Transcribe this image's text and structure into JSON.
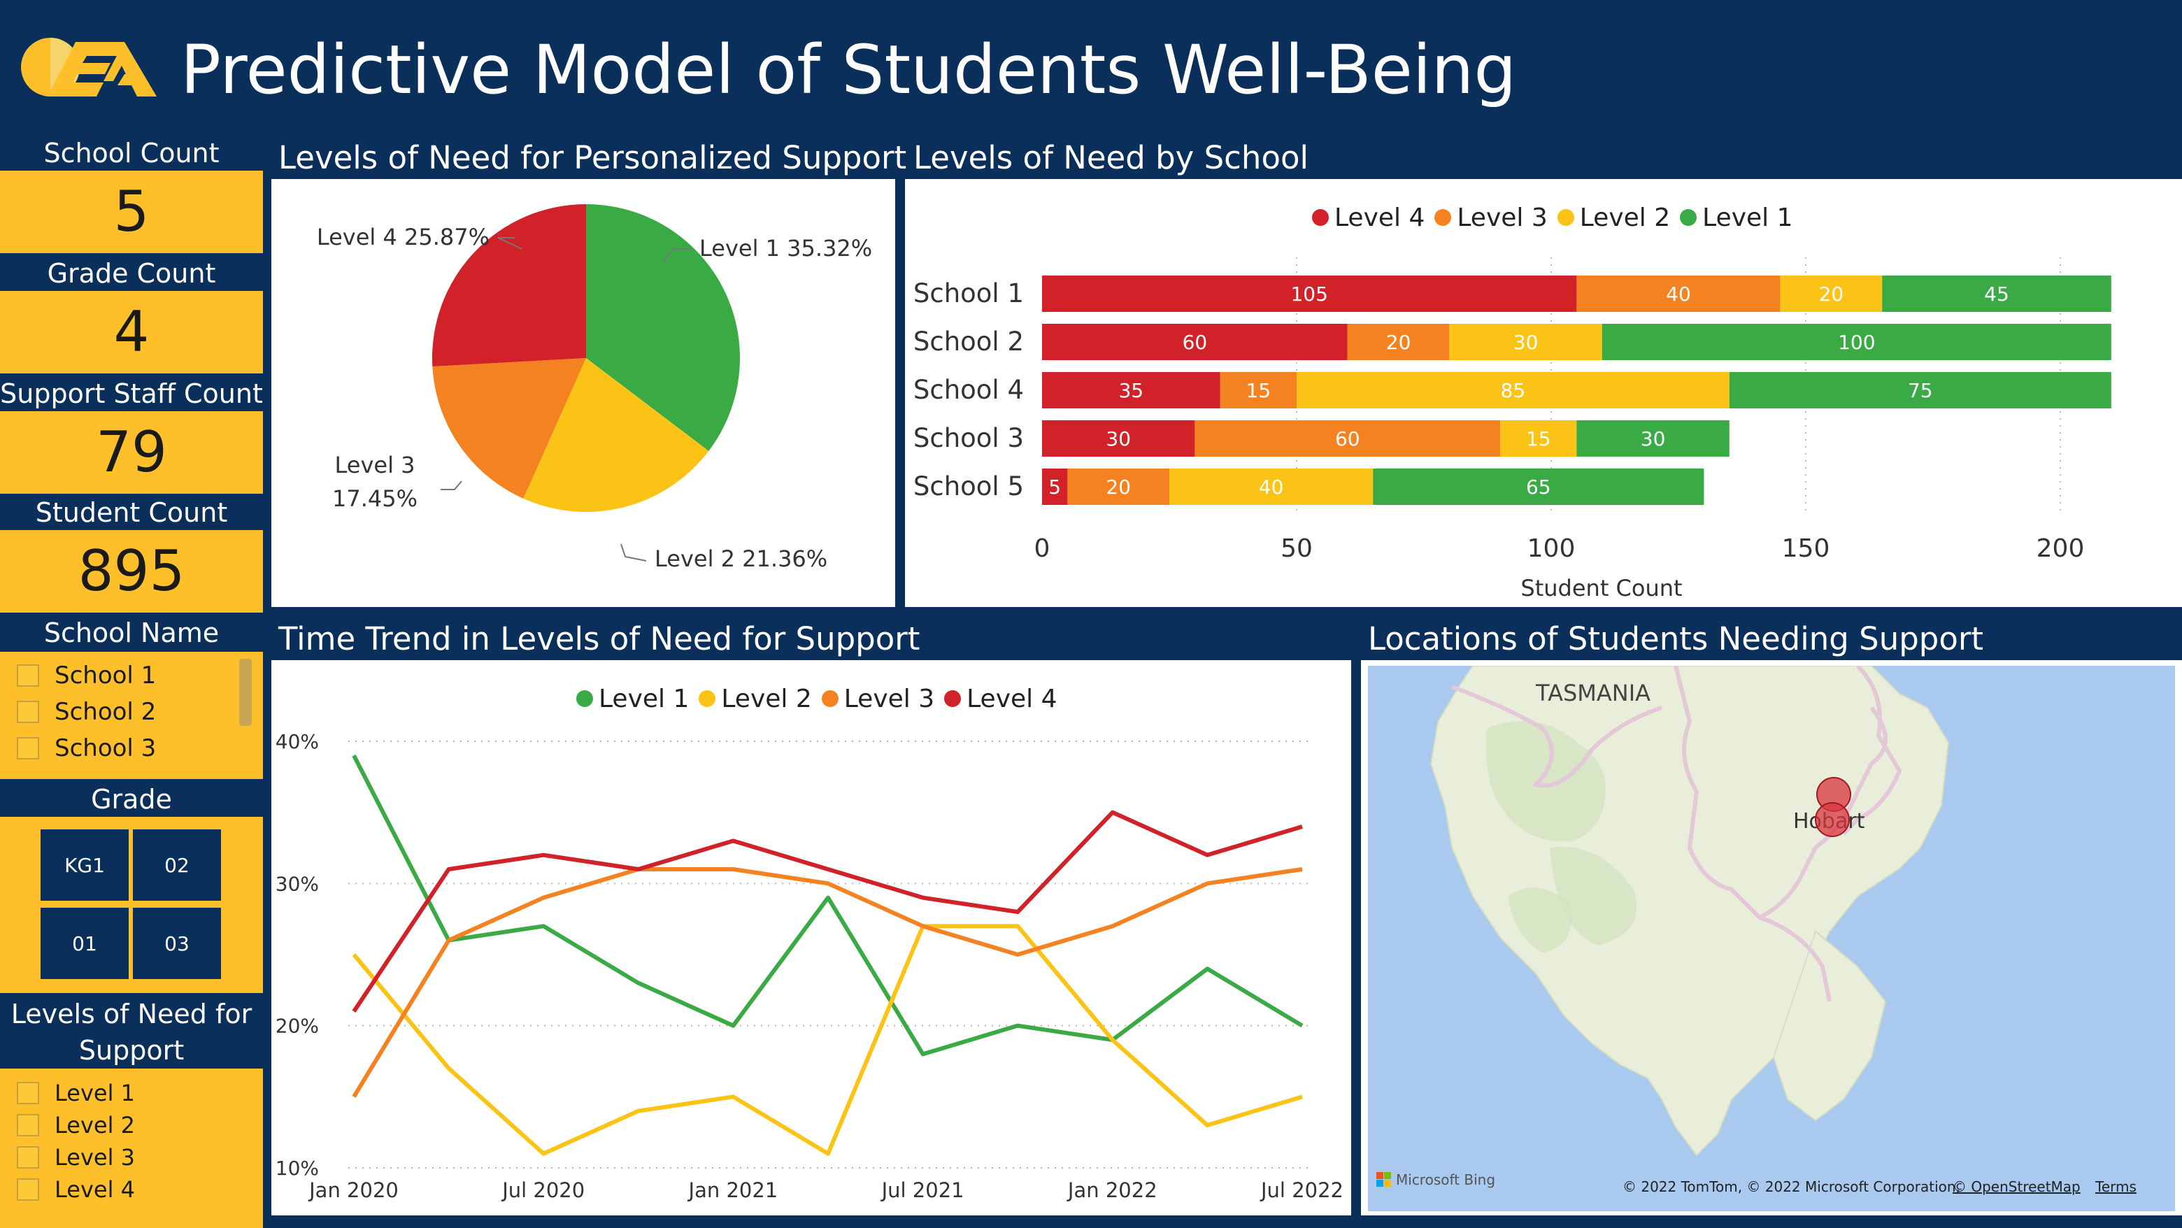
{
  "header": {
    "title": "Predictive Model of Students Well-Being"
  },
  "kpis": {
    "school_count": {
      "label": "School Count",
      "value": "5"
    },
    "grade_count": {
      "label": "Grade Count",
      "value": "4"
    },
    "support_staff_count": {
      "label": "Support Staff Count",
      "value": "79"
    },
    "student_count": {
      "label": "Student Count",
      "value": "895"
    }
  },
  "slicers": {
    "school_name": {
      "label": "School Name",
      "items": [
        "School 1",
        "School 2",
        "School 3"
      ]
    },
    "grade": {
      "label": "Grade",
      "tiles": [
        "KG1",
        "02",
        "01",
        "03"
      ]
    },
    "levels": {
      "label": "Levels of Need for Support",
      "items": [
        "Level 1",
        "Level 2",
        "Level 3",
        "Level 4"
      ]
    }
  },
  "colors": {
    "level1": "#3aaa45",
    "level2": "#fbc315",
    "level3": "#f58220",
    "level4": "#d12129",
    "navy": "#0a2f5a",
    "yellow": "#fdc02b"
  },
  "panels": {
    "pie_title": "Levels of Need for Personalized Support",
    "bar_title": "Levels of Need by School",
    "line_title": "Time Trend in Levels of Need for Support",
    "map_title": "Locations of Students Needing Support"
  },
  "map": {
    "region_label": "TASMANIA",
    "city_label": "Hobart",
    "provider": "Microsoft Bing",
    "attribution": "© 2022 TomTom, © 2022 Microsoft Corporation,",
    "osm_link": "© OpenStreetMap",
    "terms_link": "Terms"
  },
  "chart_data": [
    {
      "type": "pie",
      "slices": [
        {
          "label": "Level 1",
          "percent": 35.32,
          "text": "Level 1 35.32%"
        },
        {
          "label": "Level 2",
          "percent": 21.36,
          "text": "Level 2 21.36%"
        },
        {
          "label": "Level 3",
          "percent": 17.45,
          "text": "Level 3\n17.45%"
        },
        {
          "label": "Level 4",
          "percent": 25.87,
          "text": "Level 4 25.87%"
        }
      ]
    },
    {
      "type": "bar",
      "orientation": "horizontal",
      "stacked": true,
      "categories": [
        "School 1",
        "School 2",
        "School 4",
        "School 3",
        "School 5"
      ],
      "series": [
        {
          "name": "Level 4",
          "values": [
            105,
            60,
            35,
            30,
            5
          ]
        },
        {
          "name": "Level 3",
          "values": [
            40,
            20,
            15,
            60,
            20
          ]
        },
        {
          "name": "Level 2",
          "values": [
            20,
            30,
            85,
            15,
            40
          ]
        },
        {
          "name": "Level 1",
          "values": [
            45,
            100,
            75,
            30,
            65
          ]
        }
      ],
      "xlabel": "Student Count",
      "xlim": [
        0,
        210
      ],
      "xticks": [
        "0",
        "50",
        "100",
        "150",
        "200"
      ],
      "legend_position": "top"
    },
    {
      "type": "line",
      "x": [
        "Jan 2020",
        "Apr 2020",
        "Jul 2020",
        "Oct 2020",
        "Jan 2021",
        "Apr 2021",
        "Jul 2021",
        "Oct 2021",
        "Jan 2022",
        "Apr 2022",
        "Jul 2022"
      ],
      "xticks": [
        "Jan 2020",
        "Jul 2020",
        "Jan 2021",
        "Jul 2021",
        "Jan 2022",
        "Jul 2022"
      ],
      "yticks": [
        "10%",
        "20%",
        "30%",
        "40%"
      ],
      "ylim": [
        10,
        40
      ],
      "series": [
        {
          "name": "Level 1",
          "values": [
            39,
            26,
            27,
            23,
            20,
            29,
            18,
            20,
            19,
            24,
            20
          ]
        },
        {
          "name": "Level 2",
          "values": [
            25,
            17,
            11,
            14,
            15,
            11,
            27,
            27,
            19,
            13,
            15
          ]
        },
        {
          "name": "Level 3",
          "values": [
            15,
            26,
            29,
            31,
            31,
            30,
            27,
            25,
            27,
            30,
            31
          ]
        },
        {
          "name": "Level 4",
          "values": [
            21,
            31,
            32,
            31,
            33,
            31,
            29,
            28,
            35,
            32,
            34
          ]
        }
      ],
      "legend_position": "top"
    }
  ]
}
